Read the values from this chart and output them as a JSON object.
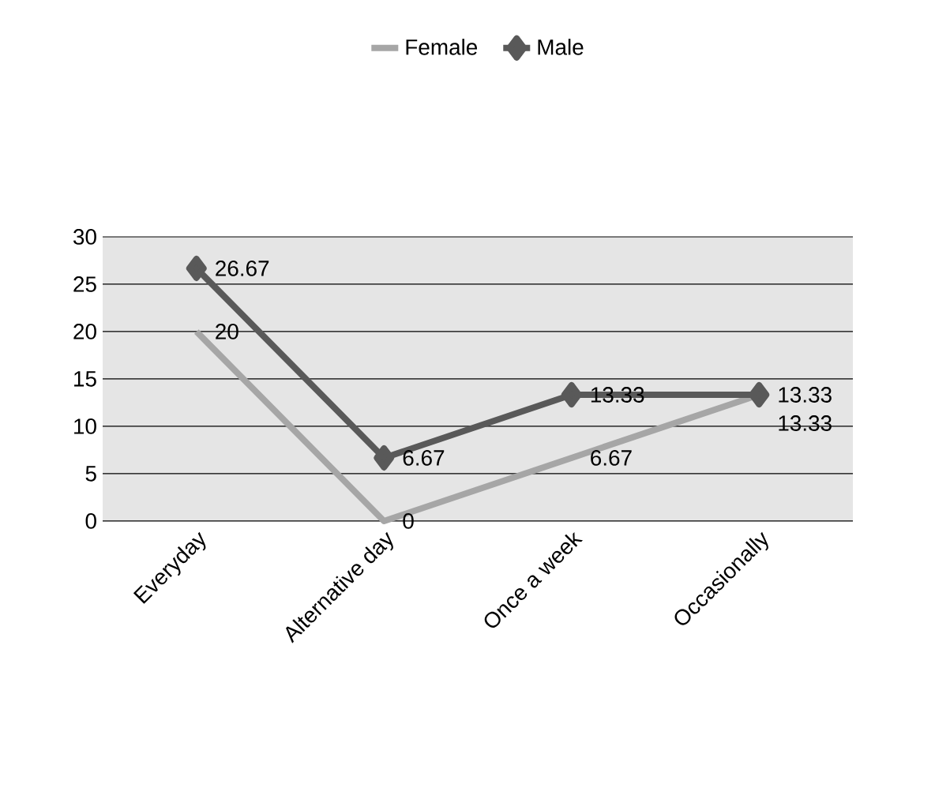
{
  "chart_data": {
    "type": "line",
    "categories": [
      "Everyday",
      "Alternative day",
      "Once a week",
      "Occasionally"
    ],
    "series": [
      {
        "name": "Female",
        "color": "#a6a6a6",
        "values": [
          20,
          0,
          6.67,
          13.33
        ],
        "marker": "none"
      },
      {
        "name": "Male",
        "color": "#595959",
        "values": [
          26.67,
          6.67,
          13.33,
          13.33
        ],
        "marker": "diamond"
      }
    ],
    "ylim": [
      0,
      30
    ],
    "yticks": [
      0,
      5,
      10,
      15,
      20,
      25,
      30
    ],
    "grid": "y",
    "legend": "top",
    "data_labels": true
  }
}
